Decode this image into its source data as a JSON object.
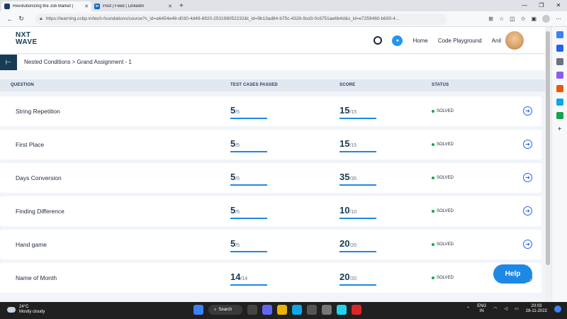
{
  "browser": {
    "tabs": [
      {
        "title": "Revolutionizing the Job Market |",
        "active": true
      },
      {
        "title": "Post | Feed | LinkedIn",
        "active": false
      }
    ],
    "url": "https://learning.ccbp.in/tech-foundations/course?c_id=a6454e48-d030-4d49-8920-253198052232&t_id=9b13ad84-b75c-4328-9cd3-0c6751ae6b4d&s_id=e7259460-b630-4..."
  },
  "header": {
    "logo_line1": "NXT",
    "logo_line2": "WAVE",
    "nav": [
      "Home",
      "Code Playground"
    ],
    "user_name": "Anil"
  },
  "breadcrumb": "Nested Conditions > Grand Assignment - 1",
  "table": {
    "columns": [
      "QUESTION",
      "TEST CASES PASSED",
      "SCORE",
      "STATUS"
    ],
    "rows": [
      {
        "question": "String Repetition",
        "tc": "5",
        "tc_total": "/5",
        "score": "15",
        "score_total": "/15",
        "status": "SOLVED"
      },
      {
        "question": "First Place",
        "tc": "5",
        "tc_total": "/5",
        "score": "15",
        "score_total": "/15",
        "status": "SOLVED"
      },
      {
        "question": "Days Conversion",
        "tc": "5",
        "tc_total": "/5",
        "score": "35",
        "score_total": "/35",
        "status": "SOLVED"
      },
      {
        "question": "Finding Difference",
        "tc": "5",
        "tc_total": "/5",
        "score": "10",
        "score_total": "/10",
        "status": "SOLVED"
      },
      {
        "question": "Hand game",
        "tc": "5",
        "tc_total": "/5",
        "score": "20",
        "score_total": "/20",
        "status": "SOLVED"
      },
      {
        "question": "Name of Month",
        "tc": "14",
        "tc_total": "/14",
        "score": "20",
        "score_total": "/20",
        "status": "SOLVED"
      }
    ]
  },
  "help_label": "Help",
  "taskbar": {
    "temp": "24°C",
    "weather": "Mostly cloudy",
    "search": "Search",
    "lang1": "ENG",
    "lang2": "IN",
    "time": "20:03",
    "date": "28-11-2022"
  },
  "colors": {
    "brand": "#183b56",
    "accent": "#1e88e5",
    "solved": "#16a34a"
  }
}
